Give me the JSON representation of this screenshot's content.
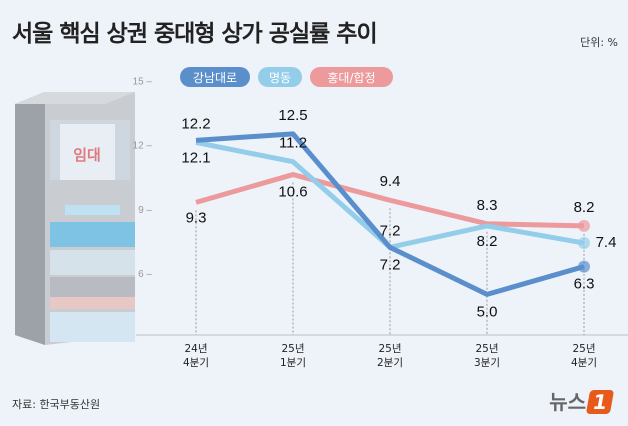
{
  "title": "서울 핵심 상권 중대형 상가 공실률 추이",
  "unit": "단위: %",
  "source": "자료: 한국부동산원",
  "logo": {
    "text": "뉴스",
    "mark": "1"
  },
  "building_sign": "임대",
  "chart_data": {
    "type": "line",
    "title": "서울 핵심 상권 중대형 상가 공실률 추이",
    "ylabel": "단위: %",
    "categories": [
      [
        "24년",
        "4분기"
      ],
      [
        "25년",
        "1분기"
      ],
      [
        "25년",
        "2분기"
      ],
      [
        "25년",
        "3분기"
      ],
      [
        "25년",
        "4분기"
      ]
    ],
    "yticks": [
      6,
      9,
      12,
      15
    ],
    "ylim": [
      3,
      15
    ],
    "grid": false,
    "legend": "top",
    "series": [
      {
        "name": "강남대로",
        "color": "#5b8fcc",
        "values": [
          12.2,
          12.5,
          7.2,
          5.0,
          6.3
        ]
      },
      {
        "name": "명동",
        "color": "#93cdea",
        "values": [
          12.1,
          11.2,
          7.2,
          8.2,
          7.4
        ]
      },
      {
        "name": "홍대/합정",
        "color": "#ec9a9c",
        "values": [
          9.3,
          10.6,
          9.4,
          8.3,
          8.2
        ]
      }
    ]
  }
}
